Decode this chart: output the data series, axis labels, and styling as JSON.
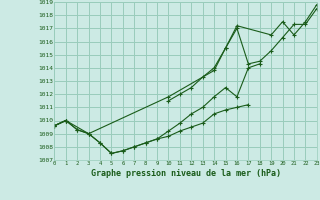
{
  "title": "Graphe pression niveau de la mer (hPa)",
  "bg_color": "#cceae4",
  "grid_color": "#99ccbb",
  "line_color": "#1a5c1a",
  "x_min": 0,
  "x_max": 23,
  "y_min": 1007,
  "y_max": 1019,
  "series": [
    {
      "x": [
        0,
        1,
        2,
        3,
        4,
        5,
        6,
        7,
        8,
        9,
        10,
        11,
        12,
        13,
        14,
        15,
        16,
        17,
        18,
        19,
        20,
        21,
        22,
        23
      ],
      "y": [
        1009.6,
        1010.0,
        1009.3,
        1009.0,
        1008.3,
        1007.5,
        1007.7,
        1008.0,
        1008.3,
        1008.6,
        1008.8,
        1009.2,
        1009.5,
        1009.8,
        1010.5,
        1010.8,
        1011.0,
        1011.2,
        null,
        null,
        null,
        null,
        null,
        null
      ]
    },
    {
      "x": [
        0,
        1,
        2,
        3,
        4,
        5,
        6,
        7,
        8,
        9,
        10,
        11,
        12,
        13,
        14,
        15,
        16,
        17,
        18,
        19,
        20,
        21,
        22,
        23
      ],
      "y": [
        1009.6,
        1010.0,
        1009.3,
        1009.0,
        1008.3,
        1007.5,
        1007.7,
        1008.0,
        1008.3,
        1008.6,
        1009.2,
        1009.8,
        1010.5,
        1011.0,
        1011.8,
        1012.5,
        1011.8,
        1014.0,
        1014.3,
        null,
        null,
        null,
        null,
        null
      ]
    },
    {
      "x": [
        0,
        1,
        2,
        3,
        4,
        5,
        6,
        7,
        8,
        9,
        10,
        11,
        12,
        13,
        14,
        15,
        16,
        17,
        18,
        19,
        20,
        21,
        22,
        23
      ],
      "y": [
        1009.6,
        1010.0,
        null,
        null,
        null,
        null,
        null,
        null,
        null,
        null,
        1011.5,
        1012.0,
        1012.5,
        1013.3,
        1014.0,
        1015.5,
        1017.0,
        1014.3,
        1014.5,
        1015.3,
        1016.3,
        1017.3,
        1017.3,
        1018.5
      ]
    },
    {
      "x": [
        0,
        1,
        3,
        10,
        14,
        15,
        16,
        19,
        20,
        21,
        22,
        23
      ],
      "y": [
        1009.6,
        1010.0,
        1009.0,
        1011.8,
        1013.8,
        1015.5,
        1017.2,
        1016.5,
        1017.5,
        1016.5,
        1017.5,
        1018.8
      ]
    }
  ]
}
